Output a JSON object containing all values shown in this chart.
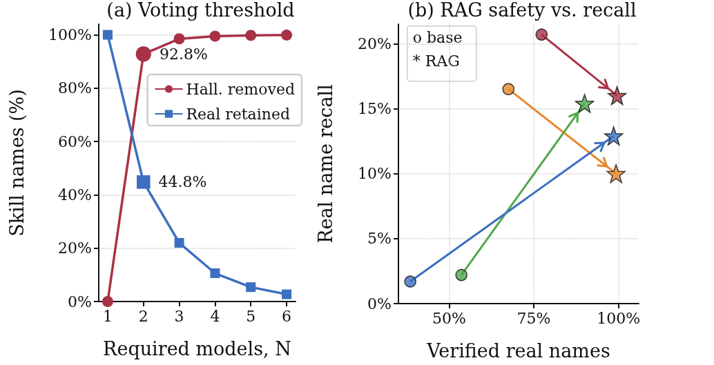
{
  "chart_data": [
    {
      "type": "line",
      "title": "(a) Voting threshold",
      "xlabel": "Required models, N",
      "ylabel": "Skill names (%)",
      "x": [
        1,
        2,
        3,
        4,
        5,
        6
      ],
      "series": [
        {
          "name": "Hall. removed",
          "color": "#a83245",
          "marker": "circle",
          "values": [
            0,
            92.8,
            98.5,
            99.5,
            99.8,
            99.9
          ],
          "value_labels": [
            null,
            "92.8%",
            null,
            null,
            null,
            null
          ]
        },
        {
          "name": "Real retained",
          "color": "#3b6fbf",
          "marker": "square",
          "values": [
            100,
            44.8,
            22,
            10.6,
            5.4,
            2.7
          ],
          "value_labels": [
            null,
            "44.8%",
            null,
            null,
            null,
            null
          ]
        }
      ],
      "xlim": [
        0.75,
        6.25
      ],
      "xticks": [
        1,
        2,
        3,
        4,
        5,
        6
      ],
      "ylim": [
        0,
        104
      ],
      "yticks": [
        {
          "value": 0,
          "label": "0%"
        },
        {
          "value": 20,
          "label": "20%"
        },
        {
          "value": 40,
          "label": "40%"
        },
        {
          "value": 60,
          "label": "60%"
        },
        {
          "value": 80,
          "label": "80%"
        },
        {
          "value": 100,
          "label": "100%"
        }
      ],
      "grid": "y",
      "legend": "right",
      "line_style": "solid"
    },
    {
      "type": "scatter",
      "title": "(b) RAG safety vs. recall",
      "xlabel": "Verified real names",
      "ylabel": "Real name recall",
      "series": [
        {
          "color": "#a83245",
          "marker": "circle",
          "x": [
            77.3
          ],
          "values": [
            20.7
          ]
        },
        {
          "color": "#e6862a",
          "marker": "circle",
          "x": [
            67.5
          ],
          "values": [
            16.5
          ]
        },
        {
          "color": "#4ea84a",
          "marker": "circle",
          "x": [
            53.6
          ],
          "values": [
            2.2
          ]
        },
        {
          "color": "#3b6fbf",
          "marker": "circle",
          "x": [
            38.5
          ],
          "values": [
            1.7
          ]
        },
        {
          "color": "#a83245",
          "marker": "star",
          "x": [
            99.6
          ],
          "values": [
            16.0
          ]
        },
        {
          "color": "#e6862a",
          "marker": "star",
          "x": [
            99.3
          ],
          "values": [
            10.0
          ]
        },
        {
          "color": "#4ea84a",
          "marker": "star",
          "x": [
            90.0
          ],
          "values": [
            15.4
          ]
        },
        {
          "color": "#3b6fbf",
          "marker": "star",
          "x": [
            98.6
          ],
          "values": [
            12.9
          ]
        },
        {
          "type": "line",
          "color": "#a83245",
          "marker": "none",
          "x": [
            77.3,
            99.6
          ],
          "values": [
            20.7,
            16.0
          ]
        },
        {
          "type": "line",
          "color": "#e6862a",
          "marker": "none",
          "x": [
            67.5,
            99.3
          ],
          "values": [
            16.5,
            10.0
          ]
        },
        {
          "type": "line",
          "color": "#4ea84a",
          "marker": "none",
          "x": [
            53.6,
            90.0
          ],
          "values": [
            2.2,
            15.4
          ]
        },
        {
          "type": "line",
          "color": "#3b6fbf",
          "marker": "none",
          "x": [
            38.5,
            98.6
          ],
          "values": [
            1.7,
            12.9
          ]
        }
      ],
      "annotations": [
        "o base",
        "* RAG"
      ],
      "xlim": [
        35,
        106
      ],
      "xticks": [
        {
          "value": 50,
          "label": "50%"
        },
        {
          "value": 75,
          "label": "75%"
        },
        {
          "value": 100,
          "label": "100%"
        }
      ],
      "ylim": [
        0,
        21.5
      ],
      "yticks": [
        {
          "value": 0,
          "label": "0%"
        },
        {
          "value": 5,
          "label": "5%"
        },
        {
          "value": 10,
          "label": "10%"
        },
        {
          "value": 15,
          "label": "15%"
        },
        {
          "value": 20,
          "label": "20%"
        }
      ],
      "grid": true
    }
  ]
}
